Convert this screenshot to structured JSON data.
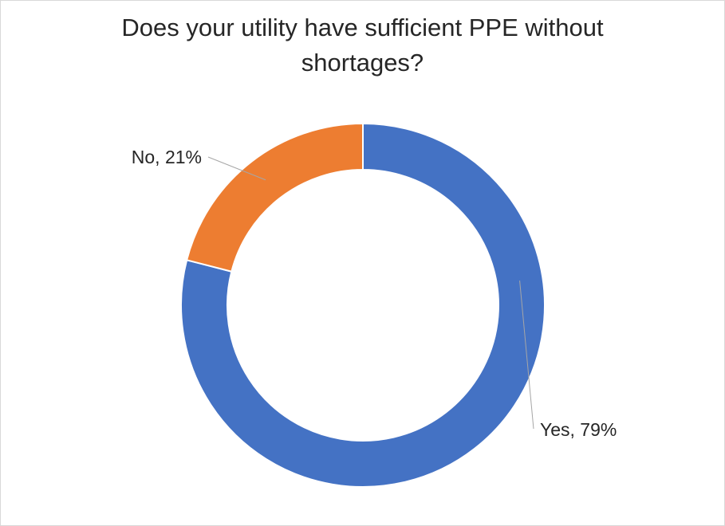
{
  "chart_data": {
    "type": "pie",
    "variant": "doughnut",
    "title_lines": [
      "Does your utility have sufficient PPE without",
      "shortages?"
    ],
    "categories": [
      "Yes",
      "No"
    ],
    "values": [
      79,
      21
    ],
    "unit": "%",
    "colors": [
      "#4472C4",
      "#ED7D31"
    ],
    "data_labels": [
      "Yes, 79%",
      "No, 21%"
    ],
    "legend": "none"
  }
}
